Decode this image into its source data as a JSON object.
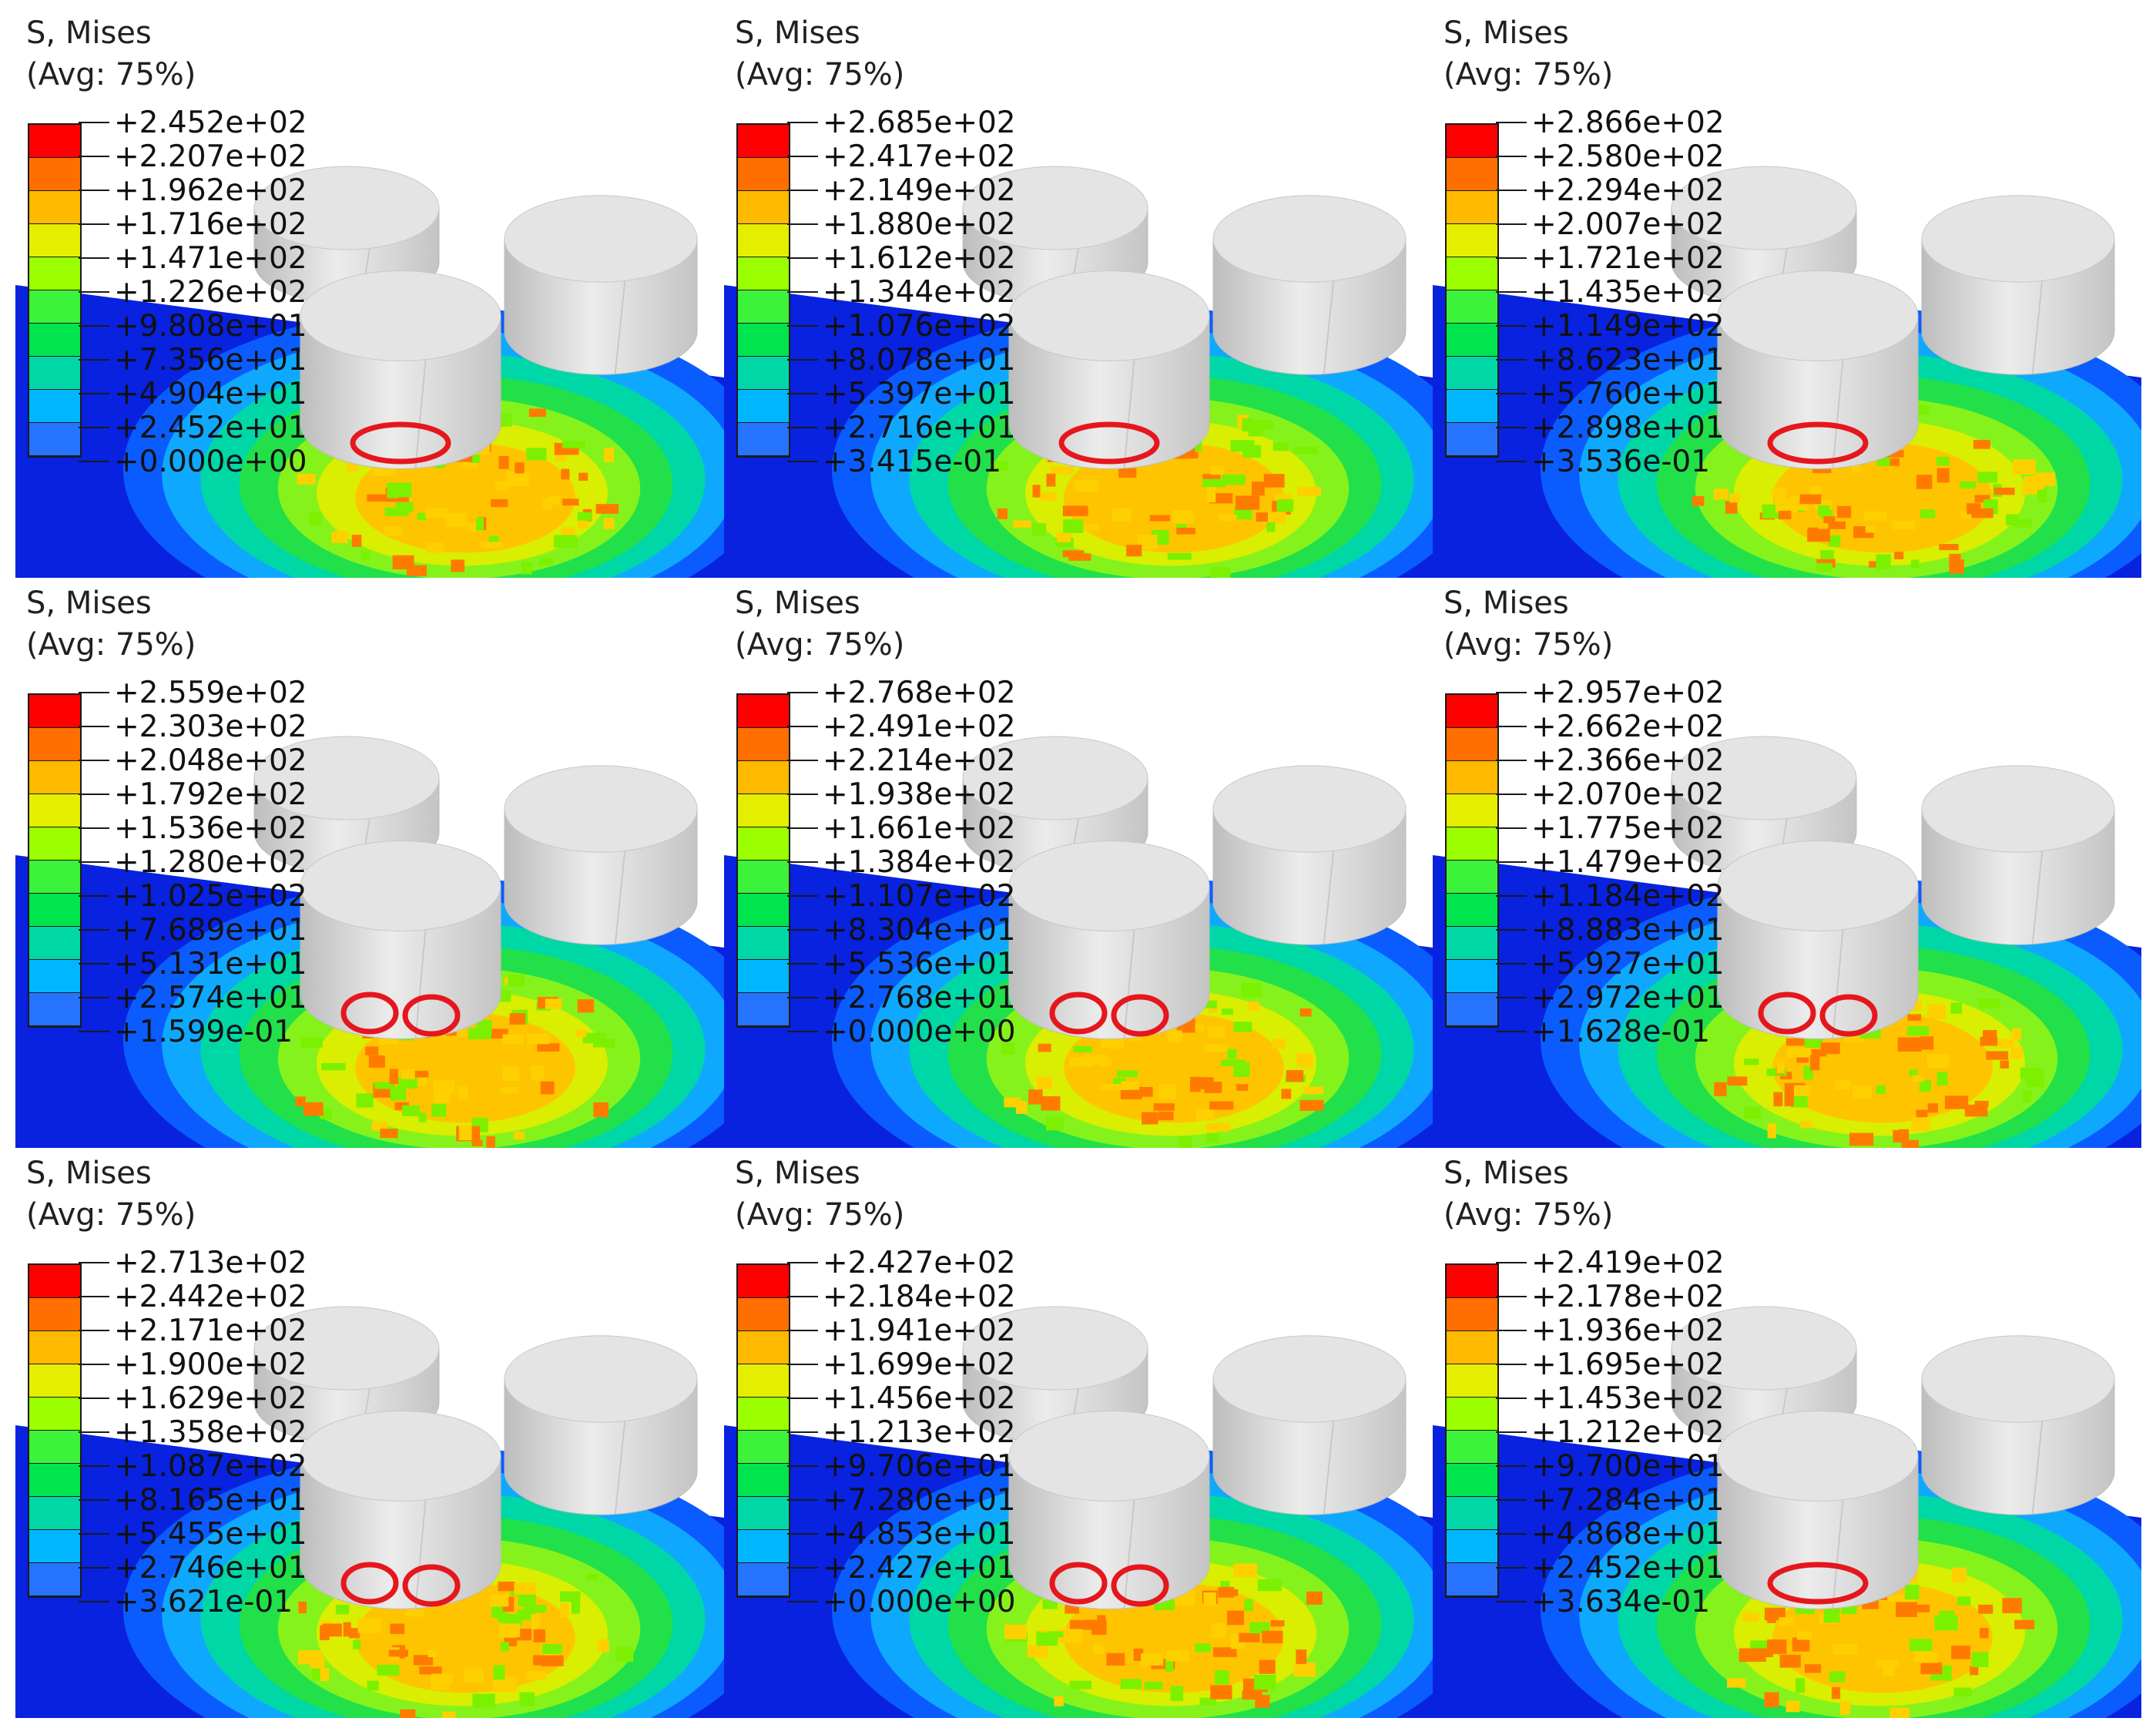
{
  "figure": {
    "panels": [
      {
        "title": "S, Mises",
        "subtitle": "(Avg: 75%)",
        "values": [
          "+2.452e+02",
          "+2.207e+02",
          "+1.962e+02",
          "+1.716e+02",
          "+1.471e+02",
          "+1.226e+02",
          "+9.808e+01",
          "+7.356e+01",
          "+4.904e+01",
          "+2.452e+01",
          "+0.000e+00"
        ],
        "markers": 1
      },
      {
        "title": "S, Mises",
        "subtitle": "(Avg: 75%)",
        "values": [
          "+2.685e+02",
          "+2.417e+02",
          "+2.149e+02",
          "+1.880e+02",
          "+1.612e+02",
          "+1.344e+02",
          "+1.076e+02",
          "+8.078e+01",
          "+5.397e+01",
          "+2.716e+01",
          "+3.415e-01"
        ],
        "markers": 1
      },
      {
        "title": "S, Mises",
        "subtitle": "(Avg: 75%)",
        "values": [
          "+2.866e+02",
          "+2.580e+02",
          "+2.294e+02",
          "+2.007e+02",
          "+1.721e+02",
          "+1.435e+02",
          "+1.149e+02",
          "+8.623e+01",
          "+5.760e+01",
          "+2.898e+01",
          "+3.536e-01"
        ],
        "markers": 1
      },
      {
        "title": "S, Mises",
        "subtitle": "(Avg: 75%)",
        "values": [
          "+2.559e+02",
          "+2.303e+02",
          "+2.048e+02",
          "+1.792e+02",
          "+1.536e+02",
          "+1.280e+02",
          "+1.025e+02",
          "+7.689e+01",
          "+5.131e+01",
          "+2.574e+01",
          "+1.599e-01"
        ],
        "markers": 2
      },
      {
        "title": "S, Mises",
        "subtitle": "(Avg: 75%)",
        "values": [
          "+2.768e+02",
          "+2.491e+02",
          "+2.214e+02",
          "+1.938e+02",
          "+1.661e+02",
          "+1.384e+02",
          "+1.107e+02",
          "+8.304e+01",
          "+5.536e+01",
          "+2.768e+01",
          "+0.000e+00"
        ],
        "markers": 2
      },
      {
        "title": "S, Mises",
        "subtitle": "(Avg: 75%)",
        "values": [
          "+2.957e+02",
          "+2.662e+02",
          "+2.366e+02",
          "+2.070e+02",
          "+1.775e+02",
          "+1.479e+02",
          "+1.184e+02",
          "+8.883e+01",
          "+5.927e+01",
          "+2.972e+01",
          "+1.628e-01"
        ],
        "markers": 2
      },
      {
        "title": "S, Mises",
        "subtitle": "(Avg: 75%)",
        "values": [
          "+2.713e+02",
          "+2.442e+02",
          "+2.171e+02",
          "+1.900e+02",
          "+1.629e+02",
          "+1.358e+02",
          "+1.087e+02",
          "+8.165e+01",
          "+5.455e+01",
          "+2.746e+01",
          "+3.621e-01"
        ],
        "markers": 2
      },
      {
        "title": "S, Mises",
        "subtitle": "(Avg: 75%)",
        "values": [
          "+2.427e+02",
          "+2.184e+02",
          "+1.941e+02",
          "+1.699e+02",
          "+1.456e+02",
          "+1.213e+02",
          "+9.706e+01",
          "+7.280e+01",
          "+4.853e+01",
          "+2.427e+01",
          "+0.000e+00"
        ],
        "markers": 2
      },
      {
        "title": "S, Mises",
        "subtitle": "(Avg: 75%)",
        "values": [
          "+2.419e+02",
          "+2.178e+02",
          "+1.936e+02",
          "+1.695e+02",
          "+1.453e+02",
          "+1.212e+02",
          "+9.700e+01",
          "+7.284e+01",
          "+4.868e+01",
          "+2.452e+01",
          "+3.634e-01"
        ],
        "markers": 1
      }
    ]
  },
  "colors": {
    "contour_scale": [
      "#ff0000",
      "#ff6f00",
      "#ffba00",
      "#e6ee00",
      "#9bff00",
      "#3cf23a",
      "#00e44e",
      "#00d7a6",
      "#00b7ff",
      "#2573ff",
      "#0000ff"
    ],
    "background_field": "#0822e0",
    "tool": "#d9d9d9",
    "marker": "#e5171d"
  },
  "icons": {
    "tool": "cylinder-tool-icon",
    "marker": "red-ellipse-marker-icon"
  }
}
